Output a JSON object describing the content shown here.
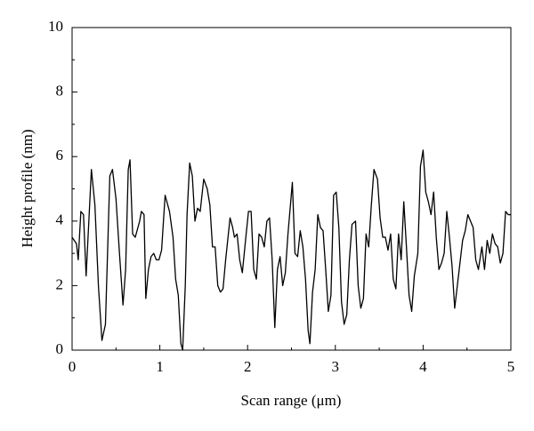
{
  "chart_data": {
    "type": "line",
    "xlabel": "Scan range (μm)",
    "ylabel": "Height profile (nm)",
    "xlim": [
      0,
      5
    ],
    "xticks": [
      0,
      1,
      2,
      3,
      4,
      5
    ],
    "ylim": [
      0,
      10
    ],
    "yticks": [
      0,
      2,
      4,
      6,
      8,
      10
    ],
    "color": "#000000",
    "x": [
      0,
      0.05,
      0.07,
      0.1,
      0.13,
      0.16,
      0.22,
      0.26,
      0.3,
      0.34,
      0.38,
      0.43,
      0.46,
      0.5,
      0.54,
      0.58,
      0.61,
      0.64,
      0.66,
      0.69,
      0.72,
      0.77,
      0.79,
      0.82,
      0.84,
      0.87,
      0.9,
      0.93,
      0.96,
      0.99,
      1.02,
      1.06,
      1.11,
      1.15,
      1.18,
      1.21,
      1.24,
      1.26,
      1.29,
      1.31,
      1.34,
      1.37,
      1.4,
      1.43,
      1.46,
      1.5,
      1.54,
      1.57,
      1.6,
      1.63,
      1.66,
      1.69,
      1.72,
      1.75,
      1.8,
      1.83,
      1.85,
      1.88,
      1.91,
      1.94,
      1.98,
      2.01,
      2.04,
      2.07,
      2.1,
      2.13,
      2.16,
      2.19,
      2.22,
      2.25,
      2.28,
      2.31,
      2.34,
      2.37,
      2.4,
      2.43,
      2.46,
      2.51,
      2.54,
      2.57,
      2.6,
      2.63,
      2.66,
      2.69,
      2.71,
      2.74,
      2.77,
      2.8,
      2.83,
      2.86,
      2.89,
      2.92,
      2.95,
      2.98,
      3.01,
      3.04,
      3.07,
      3.1,
      3.13,
      3.16,
      3.19,
      3.23,
      3.26,
      3.29,
      3.32,
      3.35,
      3.38,
      3.41,
      3.44,
      3.48,
      3.51,
      3.54,
      3.57,
      3.6,
      3.63,
      3.66,
      3.69,
      3.72,
      3.75,
      3.78,
      3.81,
      3.84,
      3.87,
      3.9,
      3.94,
      3.97,
      4.0,
      4.03,
      4.06,
      4.09,
      4.12,
      4.15,
      4.18,
      4.21,
      4.24,
      4.27,
      4.3,
      4.33,
      4.36,
      4.39,
      4.42,
      4.45,
      4.48,
      4.51,
      4.54,
      4.57,
      4.6,
      4.63,
      4.67,
      4.7,
      4.73,
      4.76,
      4.79,
      4.82,
      4.85,
      4.88,
      4.91,
      4.94,
      4.97,
      5.0
    ],
    "values": [
      3.5,
      3.3,
      2.8,
      4.3,
      4.2,
      2.3,
      5.6,
      4.5,
      2.0,
      0.3,
      0.8,
      5.4,
      5.6,
      4.7,
      3.0,
      1.4,
      2.5,
      5.6,
      5.9,
      3.6,
      3.5,
      4.0,
      4.3,
      4.2,
      1.6,
      2.5,
      2.9,
      3.0,
      2.8,
      2.8,
      3.1,
      4.8,
      4.3,
      3.5,
      2.2,
      1.7,
      0.2,
      0,
      2.0,
      4.2,
      5.8,
      5.4,
      4.0,
      4.4,
      4.3,
      5.3,
      5.0,
      4.5,
      3.2,
      3.2,
      2.0,
      1.8,
      1.9,
      2.8,
      4.1,
      3.8,
      3.5,
      3.6,
      2.8,
      2.4,
      3.5,
      4.3,
      4.3,
      2.5,
      2.2,
      3.6,
      3.5,
      3.2,
      4.0,
      4.1,
      2.8,
      0.7,
      2.5,
      2.9,
      2.0,
      2.4,
      3.6,
      5.2,
      3.0,
      2.9,
      3.7,
      3.2,
      2.2,
      0.6,
      0.2,
      1.8,
      2.5,
      4.2,
      3.8,
      3.7,
      2.5,
      1.2,
      1.7,
      4.8,
      4.9,
      3.8,
      1.5,
      0.8,
      1.1,
      2.8,
      3.9,
      4.0,
      2.0,
      1.3,
      1.6,
      3.6,
      3.2,
      4.5,
      5.6,
      5.3,
      4.1,
      3.5,
      3.5,
      3.1,
      3.6,
      2.2,
      1.9,
      3.6,
      2.8,
      4.6,
      3.2,
      1.7,
      1.2,
      2.3,
      3.0,
      5.7,
      6.2,
      4.9,
      4.6,
      4.2,
      4.9,
      3.5,
      2.5,
      2.7,
      3.0,
      4.3,
      3.5,
      2.6,
      1.3,
      2.0,
      2.7,
      3.4,
      3.7,
      4.2,
      4.0,
      3.8,
      2.8,
      2.5,
      3.2,
      2.5,
      3.4,
      3.0,
      3.6,
      3.3,
      3.2,
      2.7,
      3.0,
      4.3,
      4.2,
      4.2
    ]
  }
}
